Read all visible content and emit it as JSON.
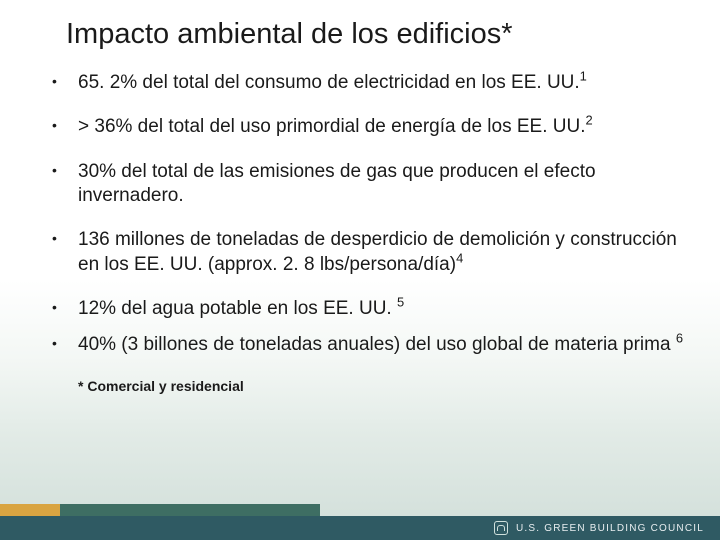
{
  "title": {
    "text": "Impacto ambiental de los edificios",
    "asterisk": "*"
  },
  "bullets": [
    {
      "text": "65. 2% del total del consumo de electricidad en los EE. UU.",
      "sup": "1"
    },
    {
      "text": "> 36% del total del uso primordial de energía de los EE. UU.",
      "sup": "2"
    },
    {
      "text": "30% del total de las emisiones de gas que producen el efecto invernadero.",
      "sup": ""
    },
    {
      "text": "136 millones de toneladas de desperdicio de demolición y construcción en los EE. UU. (approx. 2. 8 lbs/persona/día)",
      "sup": "4"
    },
    {
      "text": "12% del agua potable en los EE. UU. ",
      "sup": "5"
    },
    {
      "text": "40% (3 billones de toneladas anuales) del uso global de materia prima ",
      "sup": "6"
    }
  ],
  "footnote": "* Comercial y residencial",
  "footer": {
    "org": "U.S. GREEN BUILDING COUNCIL"
  },
  "colors": {
    "text": "#1a1a1a",
    "band_accent": "#d9a441",
    "band_mid": "#3e6e63",
    "band_main": "#2f5a63",
    "footer_text": "#e8eef0"
  }
}
